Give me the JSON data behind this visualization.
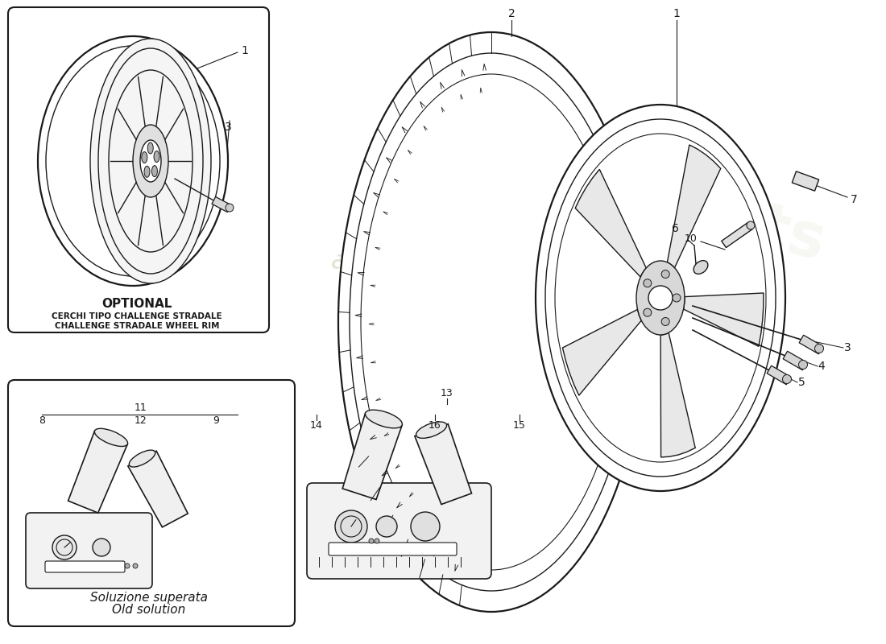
{
  "bg_color": "#ffffff",
  "line_color": "#1a1a1a",
  "wm_color": "#c8c8b0",
  "optional_text": [
    "OPTIONAL",
    "CERCHI TIPO CHALLENGE STRADALE",
    "CHALLENGE STRADALE WHEEL RIM"
  ],
  "old_sol_text": [
    "Soluzione superata",
    "Old solution"
  ]
}
